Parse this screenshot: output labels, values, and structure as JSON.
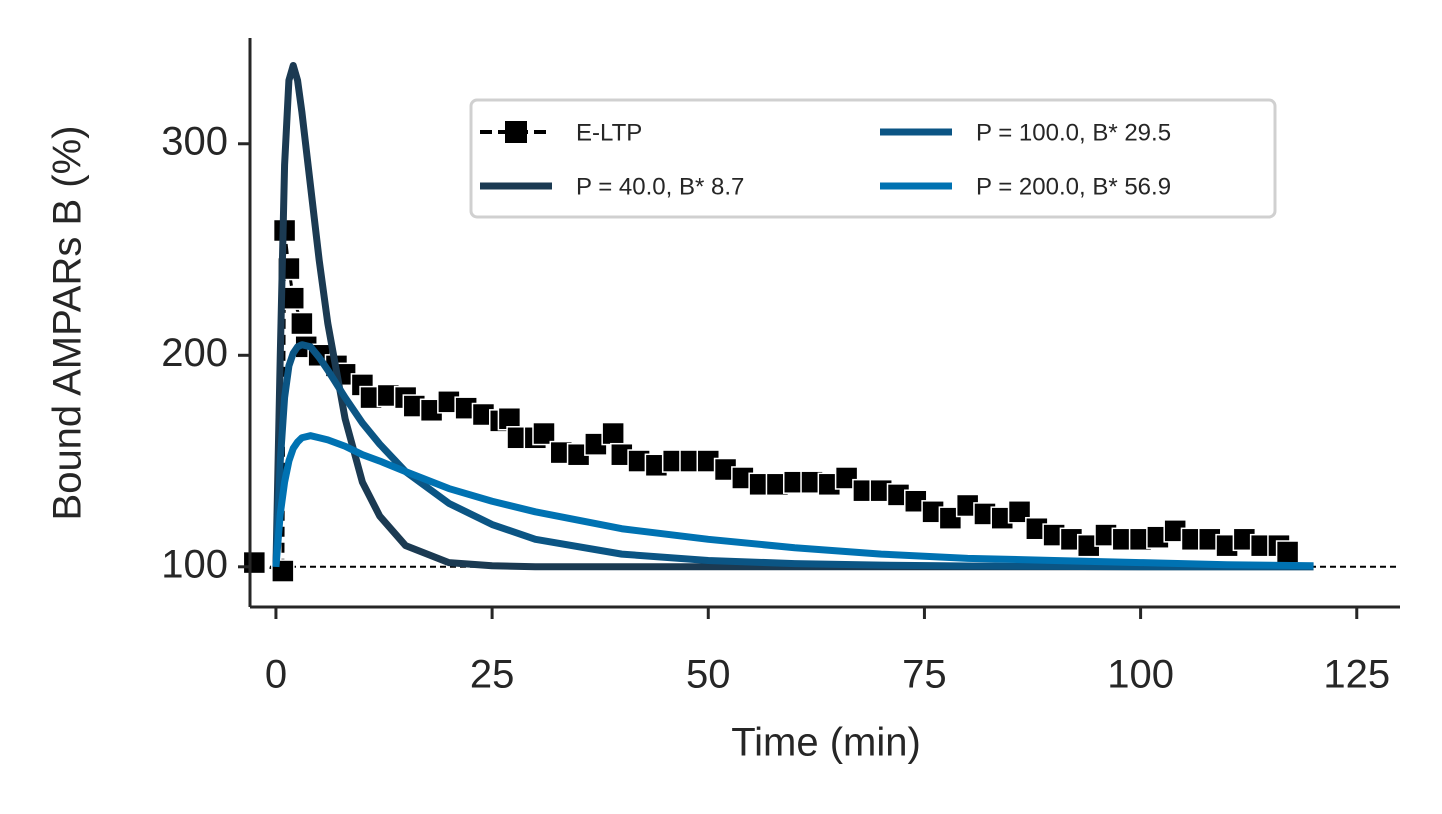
{
  "chart_data": {
    "type": "line",
    "xlabel": "Time (min)",
    "ylabel": "Bound AMPARs B (%)",
    "xlim": [
      -3,
      130
    ],
    "ylim": [
      81,
      350
    ],
    "xticks": [
      0,
      25,
      50,
      75,
      100,
      125
    ],
    "yticks": [
      100,
      200,
      300
    ],
    "hline": 100,
    "legend": "upper right",
    "series": [
      {
        "name": "E-LTP",
        "color": "#000000",
        "marker": "square",
        "dashed": true,
        "x": [
          -2.5,
          0.8,
          1,
          1.5,
          2,
          3,
          3.5,
          5,
          7,
          8,
          10,
          11,
          13,
          15,
          16,
          18,
          20,
          22,
          24,
          26,
          27,
          28,
          30,
          31,
          33,
          35,
          37,
          39,
          40,
          42,
          44,
          46,
          48,
          50,
          52,
          54,
          56,
          58,
          60,
          62,
          64,
          66,
          68,
          70,
          72,
          74,
          76,
          78,
          80,
          82,
          84,
          86,
          88,
          90,
          92,
          94,
          96,
          98,
          100,
          102,
          104,
          106,
          108,
          110,
          112,
          114,
          116,
          117
        ],
        "values": [
          102,
          98,
          259,
          241,
          227,
          215,
          204,
          200,
          195,
          191,
          186,
          180,
          181,
          180,
          176,
          174,
          178,
          175,
          172,
          169,
          170,
          161,
          161,
          163,
          154,
          153,
          158,
          163,
          153,
          150,
          148,
          150,
          150,
          150,
          146,
          142,
          139,
          139,
          140,
          140,
          139,
          142,
          136,
          136,
          134,
          131,
          126,
          123,
          129,
          125,
          123,
          126,
          118,
          115,
          113,
          110,
          115,
          113,
          113,
          114,
          117,
          113,
          113,
          110,
          113,
          110,
          110,
          107
        ]
      },
      {
        "name": "P = 40.0, B* 8.7",
        "color": "#1b3a52",
        "x": [
          0,
          0.5,
          1,
          1.5,
          2,
          2.5,
          3,
          4,
          5,
          6,
          8,
          10,
          12,
          15,
          20,
          25,
          30,
          40,
          50,
          60,
          70,
          80,
          90,
          100,
          110,
          120
        ],
        "values": [
          100,
          200,
          290,
          330,
          337,
          330,
          315,
          280,
          245,
          215,
          170,
          140,
          124,
          110,
          102,
          100.5,
          100,
          100,
          100,
          100,
          100,
          100,
          100,
          100,
          100,
          100
        ]
      },
      {
        "name": "P = 100.0, B* 29.5",
        "color": "#0b5584",
        "x": [
          0,
          0.5,
          1,
          1.5,
          2,
          2.5,
          3,
          4,
          5,
          6,
          8,
          10,
          12,
          15,
          20,
          25,
          30,
          40,
          50,
          60,
          70,
          80,
          90,
          100,
          110,
          120
        ],
        "values": [
          100,
          150,
          180,
          195,
          201,
          204,
          205,
          204,
          199,
          193,
          180,
          168,
          158,
          145,
          130,
          120,
          113,
          106,
          103,
          101.5,
          100.8,
          100.4,
          100.2,
          100,
          100,
          100
        ]
      },
      {
        "name": "P = 200.0, B* 56.9",
        "color": "#0072b2",
        "x": [
          0,
          0.5,
          1,
          1.5,
          2,
          2.5,
          3,
          4,
          5,
          6,
          8,
          10,
          12,
          15,
          20,
          25,
          30,
          40,
          50,
          60,
          70,
          80,
          90,
          100,
          110,
          120
        ],
        "values": [
          100,
          125,
          140,
          150,
          156,
          159,
          161,
          162,
          161,
          160,
          157,
          153,
          150,
          145,
          137,
          131,
          126,
          118,
          113,
          109,
          106,
          104,
          103,
          102,
          101,
          100.5
        ]
      }
    ]
  }
}
